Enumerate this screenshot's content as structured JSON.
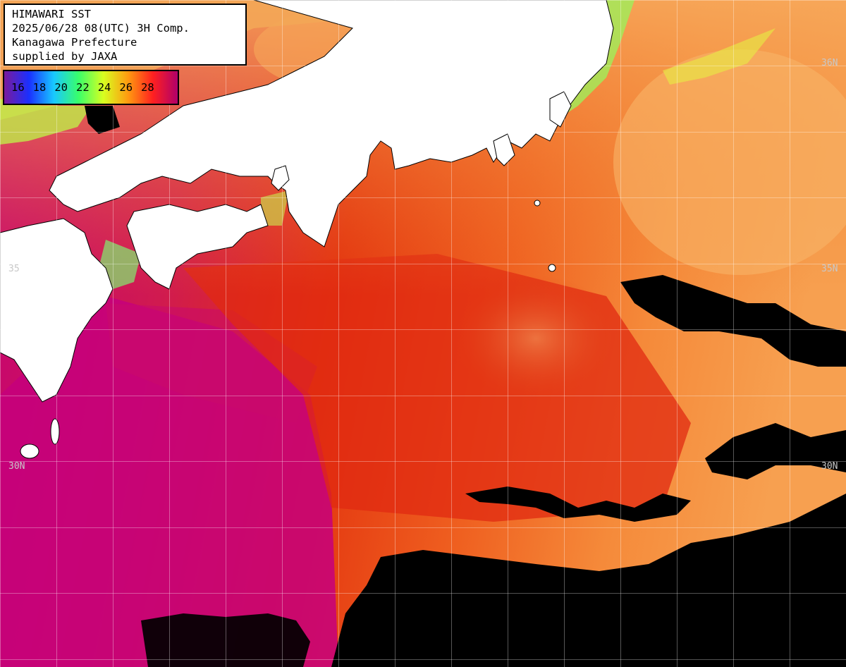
{
  "header": {
    "line1": "HIMAWARI SST",
    "line2": "2025/06/28 08(UTC) 3H Comp.",
    "line3": "Kanagawa Prefecture",
    "line4": "supplied by JAXA"
  },
  "legend": {
    "labels": [
      "16",
      "18",
      "20",
      "22",
      "24",
      "26",
      "28"
    ],
    "colors": [
      "#7a1a9c",
      "#1a30ff",
      "#18c8ff",
      "#39ff6a",
      "#d8ff20",
      "#ff9a10",
      "#ff2020",
      "#b0006a"
    ]
  },
  "lat_labels": {
    "lat35_left": "35",
    "lat35_right": "35N",
    "lat36_right": "36N",
    "lat30_left": "30N",
    "lat30_right": "30N"
  },
  "colors": {
    "land": "#ffffff",
    "cloud": "#000000",
    "warm_magenta": "#c7007a",
    "red": "#e02a10",
    "orange": "#f58a3a",
    "light_orange": "#f8b060",
    "yellow_green": "#d8ef40",
    "green": "#5ef07a",
    "grid": "#ffffff"
  }
}
